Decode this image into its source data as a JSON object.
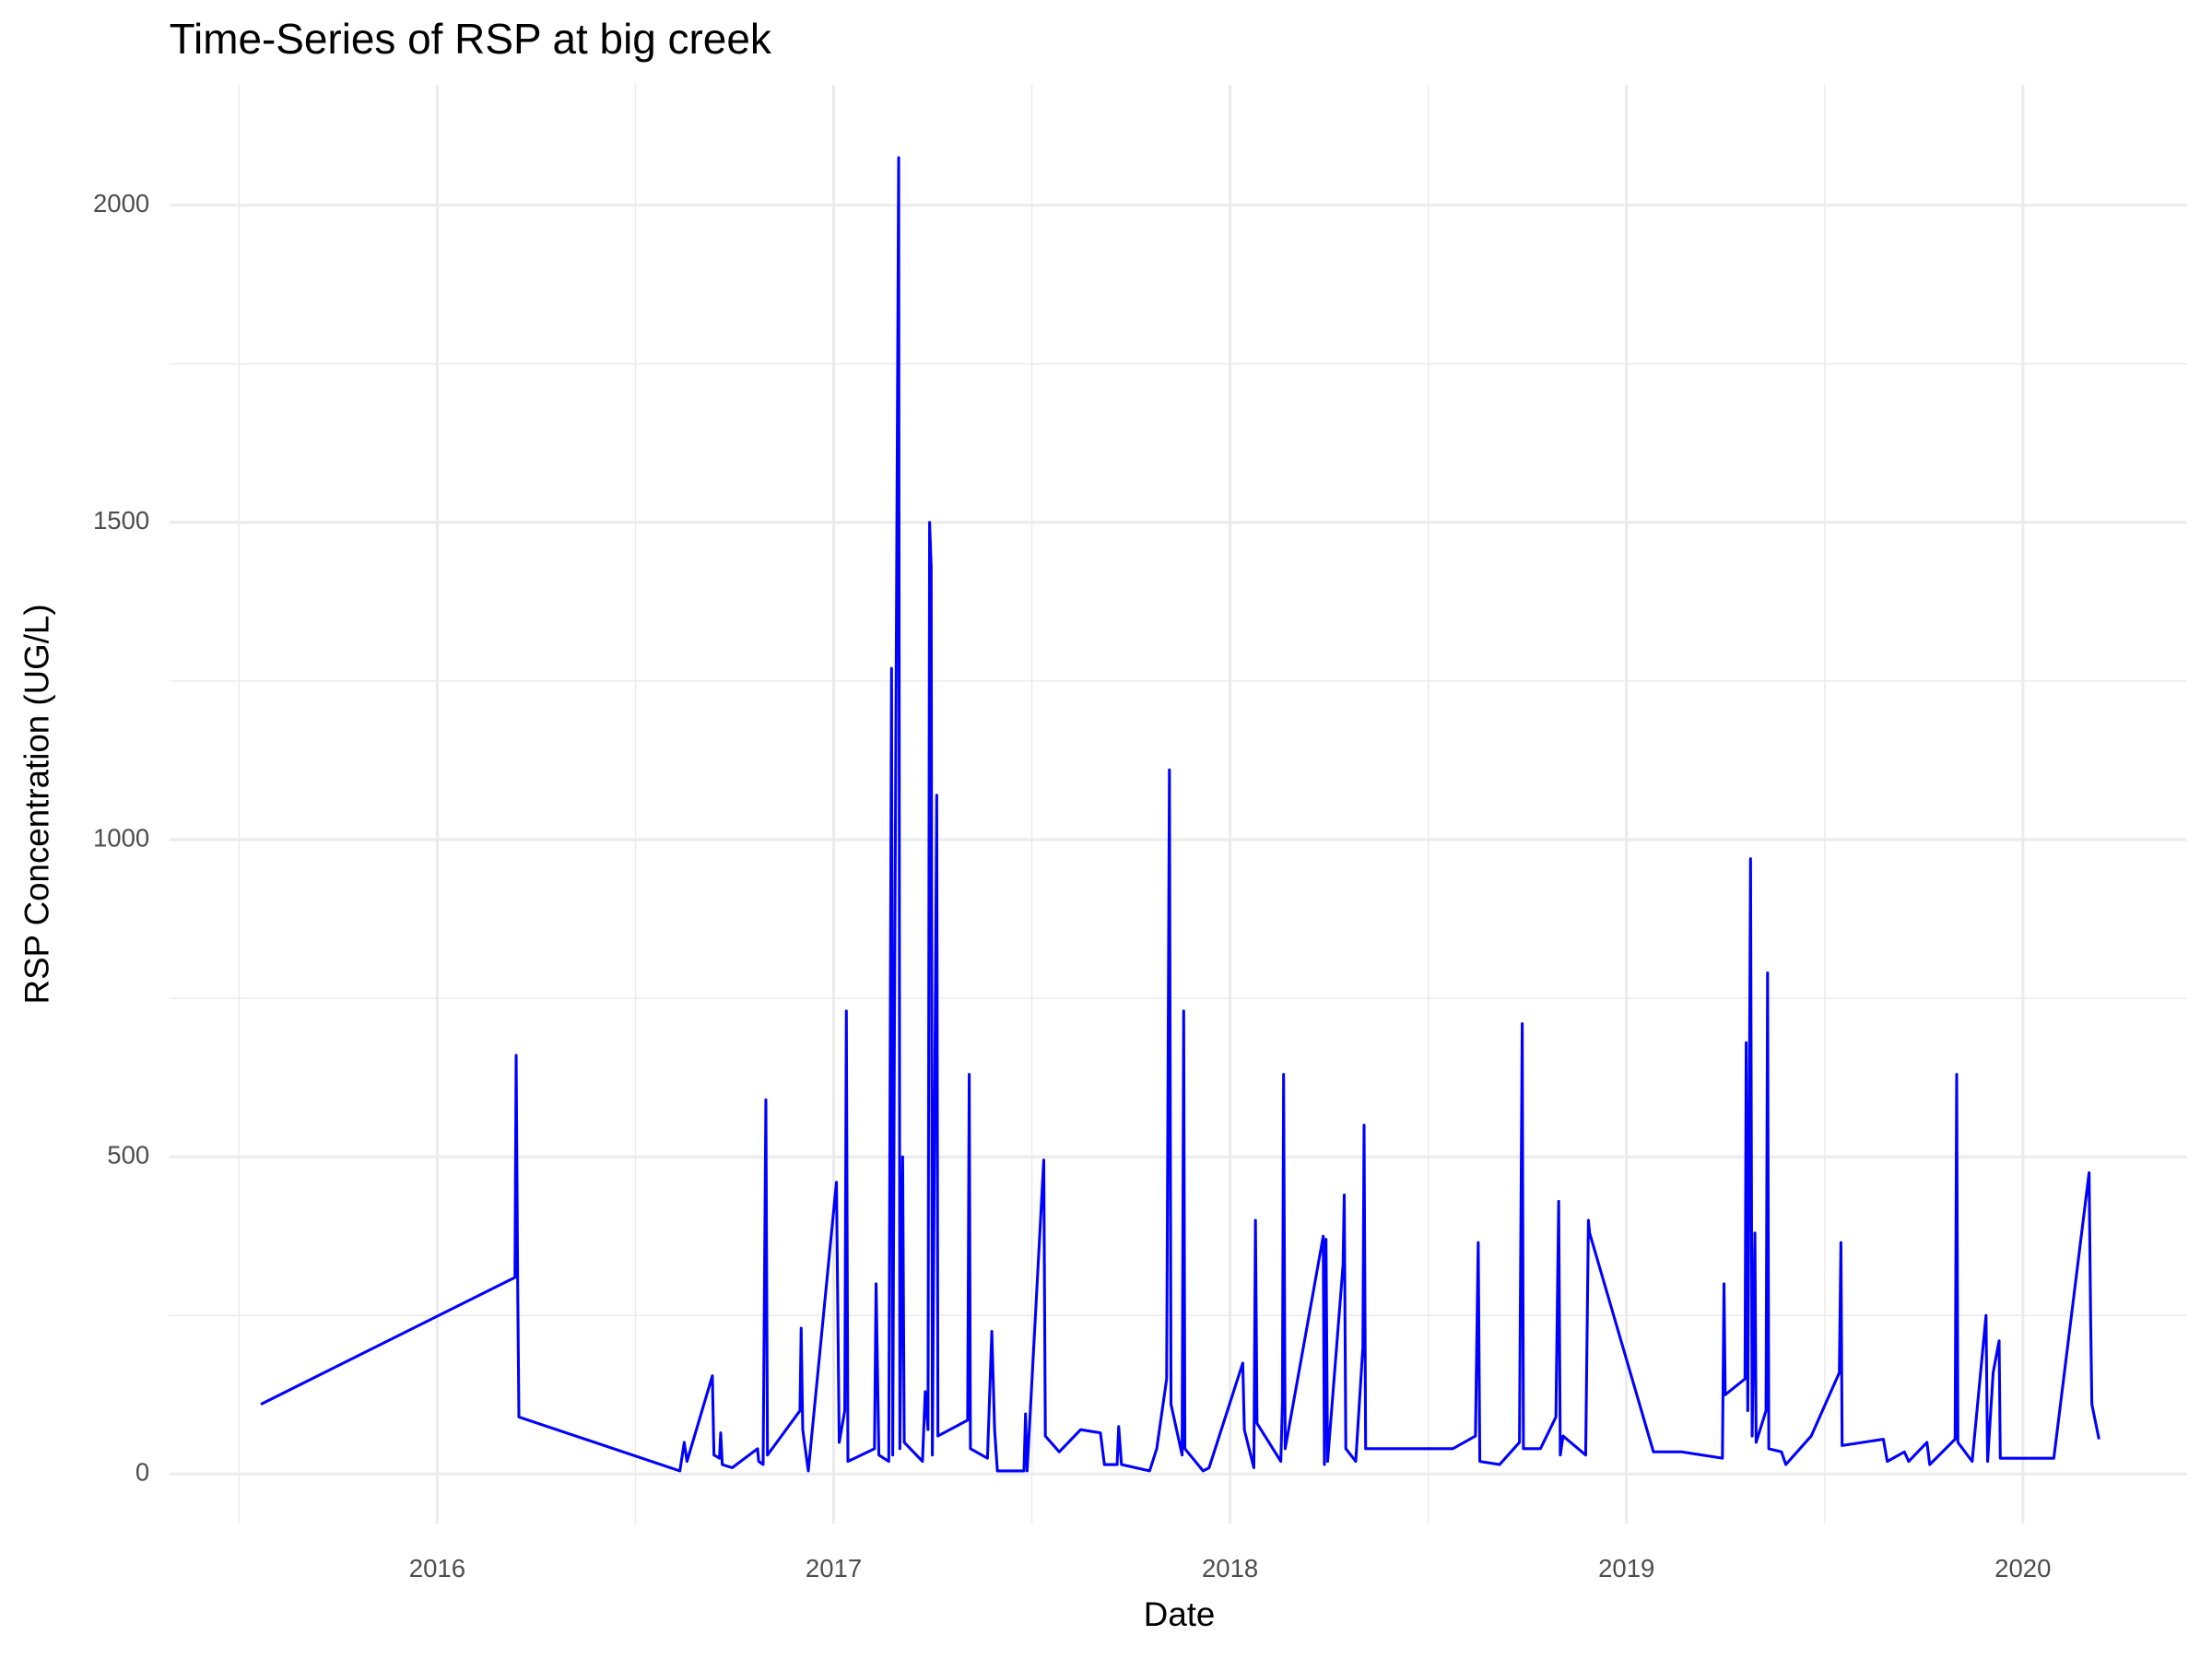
{
  "chart_data": {
    "type": "line",
    "title": "Time-Series of RSP at big creek",
    "x_label": "Date",
    "y_label": "RSP Concentration (UG/L)",
    "x": [
      2015.555,
      2016.196,
      2016.199,
      2016.203,
      2016.206,
      2016.612,
      2016.623,
      2016.63,
      2016.694,
      2016.698,
      2016.712,
      2016.715,
      2016.719,
      2016.744,
      2016.808,
      2016.811,
      2016.822,
      2016.829,
      2016.833,
      2016.915,
      2016.918,
      2016.922,
      2016.936,
      2017.007,
      2017.014,
      2017.028,
      2017.032,
      2017.036,
      2017.103,
      2017.107,
      2017.114,
      2017.139,
      2017.146,
      2017.149,
      2017.153,
      2017.164,
      2017.167,
      2017.174,
      2017.178,
      2017.224,
      2017.231,
      2017.238,
      2017.242,
      2017.246,
      2017.249,
      2017.26,
      2017.263,
      2017.338,
      2017.342,
      2017.345,
      2017.388,
      2017.399,
      2017.406,
      2017.413,
      2017.48,
      2017.484,
      2017.488,
      2017.53,
      2017.534,
      2017.569,
      2017.623,
      2017.673,
      2017.683,
      2017.715,
      2017.719,
      2017.726,
      2017.797,
      2017.815,
      2017.84,
      2017.847,
      2017.851,
      2017.879,
      2017.883,
      2017.886,
      2017.932,
      2017.947,
      2018.032,
      2018.036,
      2018.06,
      2018.064,
      2018.068,
      2018.128,
      2018.132,
      2018.135,
      2018.139,
      2018.235,
      2018.238,
      2018.242,
      2018.246,
      2018.285,
      2018.288,
      2018.292,
      2018.317,
      2018.335,
      2018.338,
      2018.342,
      2018.562,
      2018.619,
      2018.626,
      2018.63,
      2018.68,
      2018.73,
      2018.737,
      2018.74,
      2018.783,
      2018.822,
      2018.829,
      2018.833,
      2018.84,
      2018.897,
      2018.904,
      2018.907,
      2019.068,
      2019.139,
      2019.242,
      2019.246,
      2019.249,
      2019.299,
      2019.302,
      2019.306,
      2019.313,
      2019.317,
      2019.324,
      2019.327,
      2019.352,
      2019.356,
      2019.359,
      2019.391,
      2019.402,
      2019.466,
      2019.537,
      2019.541,
      2019.544,
      2019.648,
      2019.658,
      2019.701,
      2019.712,
      2019.758,
      2019.765,
      2019.829,
      2019.833,
      2019.836,
      2019.872,
      2019.907,
      2019.911,
      2019.925,
      2019.94,
      2019.943,
      2020.078,
      2020.167,
      2020.171,
      2020.174,
      2020.192
    ],
    "series": [
      {
        "color": "#0000ff",
        "values": [
          110,
          310,
          660,
          290,
          90,
          5,
          50,
          20,
          155,
          30,
          25,
          65,
          15,
          10,
          40,
          20,
          15,
          590,
          30,
          100,
          230,
          70,
          5,
          460,
          50,
          100,
          730,
          20,
          40,
          300,
          30,
          20,
          1270,
          30,
          660,
          2075,
          40,
          500,
          50,
          20,
          130,
          70,
          1500,
          1430,
          30,
          1070,
          60,
          85,
          630,
          40,
          25,
          225,
          70,
          5,
          5,
          95,
          5,
          495,
          60,
          35,
          70,
          65,
          15,
          15,
          75,
          15,
          5,
          40,
          150,
          1110,
          110,
          30,
          730,
          40,
          5,
          10,
          175,
          70,
          10,
          400,
          80,
          20,
          110,
          630,
          40,
          375,
          15,
          370,
          20,
          330,
          440,
          40,
          20,
          200,
          550,
          40,
          40,
          60,
          365,
          20,
          15,
          50,
          710,
          40,
          40,
          90,
          430,
          30,
          60,
          30,
          400,
          380,
          35,
          35,
          25,
          300,
          125,
          150,
          680,
          100,
          970,
          60,
          380,
          50,
          100,
          790,
          40,
          35,
          15,
          60,
          160,
          365,
          45,
          55,
          20,
          35,
          20,
          50,
          15,
          55,
          630,
          50,
          20,
          250,
          20,
          160,
          210,
          25,
          25,
          475,
          240,
          110,
          55
        ]
      }
    ],
    "xlim": [
      2015.324,
      2020.413
    ],
    "ylim": [
      -78,
      2190
    ],
    "xticks": [
      2016,
      2017,
      2018,
      2019,
      2020
    ],
    "yticks": [
      0,
      500,
      1000,
      1500,
      2000
    ],
    "xminorticks": [
      2015.5,
      2016.5,
      2017.5,
      2018.5,
      2019.5
    ],
    "yminorticks": [
      250,
      750,
      1250,
      1750
    ],
    "grid": true
  }
}
